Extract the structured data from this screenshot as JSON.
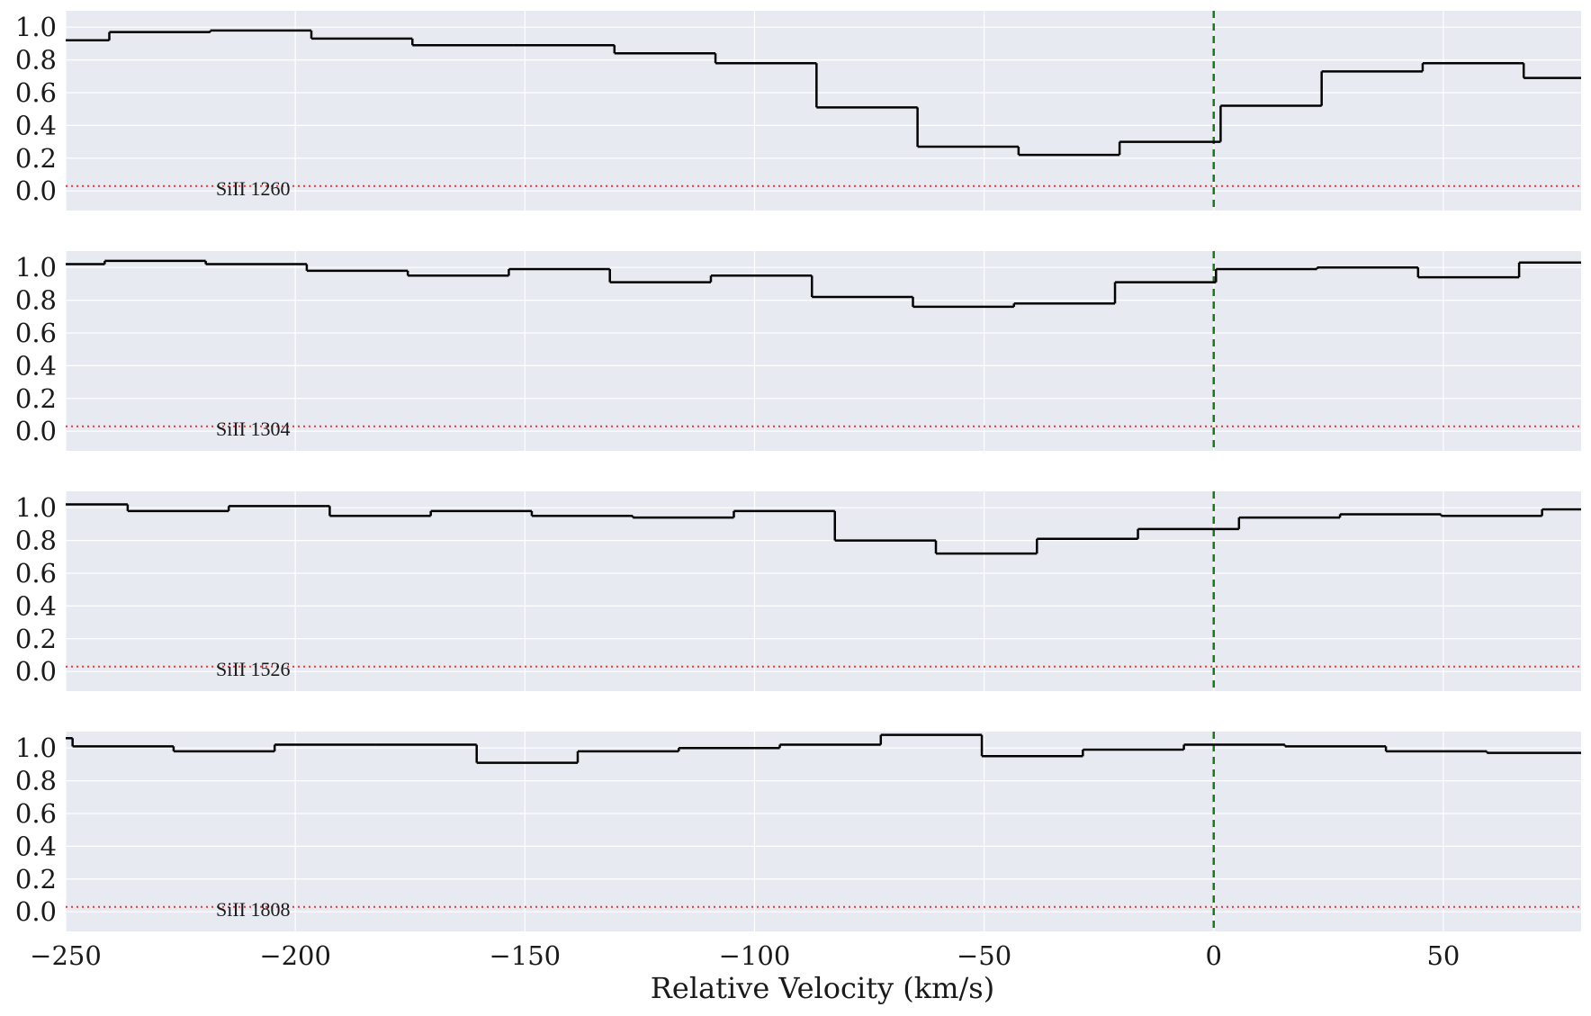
{
  "chart_data": {
    "type": "line",
    "style": "step",
    "xlabel": "Relative Velocity (km/s)",
    "xlim": [
      -250,
      80
    ],
    "ylim": [
      -0.12,
      1.1
    ],
    "x_ticks": [
      -250,
      -200,
      -150,
      -100,
      -50,
      0,
      50
    ],
    "x_tick_labels": [
      "−250",
      "−200",
      "−150",
      "−100",
      "−50",
      "0",
      "50"
    ],
    "y_ticks": [
      0.0,
      0.2,
      0.4,
      0.6,
      0.8,
      1.0
    ],
    "y_tick_labels": [
      "0.0",
      "0.2",
      "0.4",
      "0.6",
      "0.8",
      "1.0"
    ],
    "grid": true,
    "background": "#e8eaf2",
    "grid_color": "#ffffff",
    "line_color": "#000000",
    "reference_velocity": 0,
    "reference_line_color": "#1a7a1a",
    "zero_level": 0.03,
    "zero_level_color": "#ff3030",
    "panels": [
      {
        "label": "SiII 1260",
        "edges": [
          -250,
          -240.5,
          -218.5,
          -196.5,
          -174.5,
          -152.5,
          -130.5,
          -108.5,
          -86.5,
          -64.5,
          -42.5,
          -20.5,
          1.5,
          23.5,
          45.5,
          67.5,
          80
        ],
        "values": [
          0.92,
          0.97,
          0.98,
          0.93,
          0.89,
          0.89,
          0.84,
          0.78,
          0.51,
          0.27,
          0.22,
          0.3,
          0.52,
          0.73,
          0.78,
          0.69
        ]
      },
      {
        "label": "SiII 1304",
        "edges": [
          -250,
          -241.5,
          -219.5,
          -197.5,
          -175.5,
          -153.5,
          -131.5,
          -109.5,
          -87.5,
          -65.5,
          -43.5,
          -21.5,
          0.5,
          22.5,
          44.5,
          66.5,
          80
        ],
        "values": [
          1.02,
          1.04,
          1.02,
          0.98,
          0.95,
          0.99,
          0.91,
          0.95,
          0.82,
          0.76,
          0.78,
          0.91,
          0.99,
          1.0,
          0.94,
          1.03
        ]
      },
      {
        "label": "SiII 1526",
        "edges": [
          -250,
          -236.5,
          -214.5,
          -192.5,
          -170.5,
          -148.5,
          -126.5,
          -104.5,
          -82.5,
          -60.5,
          -38.5,
          -16.5,
          5.5,
          27.5,
          49.5,
          71.5,
          80
        ],
        "values": [
          1.02,
          0.98,
          1.01,
          0.95,
          0.98,
          0.95,
          0.94,
          0.98,
          0.8,
          0.72,
          0.81,
          0.87,
          0.94,
          0.96,
          0.95,
          0.99
        ]
      },
      {
        "label": "SiII 1808",
        "edges": [
          -250,
          -248.5,
          -226.5,
          -204.5,
          -182.5,
          -160.5,
          -138.5,
          -116.5,
          -94.5,
          -72.5,
          -50.5,
          -28.5,
          -6.5,
          15.5,
          37.5,
          59.5,
          80
        ],
        "values": [
          1.06,
          1.01,
          0.98,
          1.02,
          1.02,
          0.91,
          0.98,
          1.0,
          1.02,
          1.08,
          0.95,
          0.99,
          1.02,
          1.01,
          0.98,
          0.97
        ]
      }
    ]
  }
}
